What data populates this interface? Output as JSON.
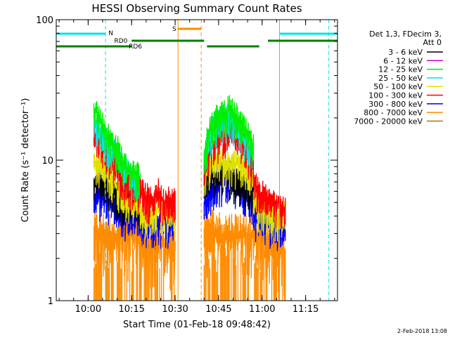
{
  "chart_data": {
    "type": "line",
    "title": "HESSI Observing Summary Count Rates",
    "xlabel": "Start Time (01-Feb-18 09:48:42)",
    "ylabel": "Count Rate (s⁻¹ detector⁻¹)",
    "y_scale": "log",
    "ylim": [
      1,
      100
    ],
    "x_range_minutes": [
      "09:49",
      "11:26"
    ],
    "x_ticks": [
      "10:00",
      "10:15",
      "10:30",
      "10:45",
      "11:00",
      "11:15"
    ],
    "y_ticks": [
      "1",
      "10",
      "100"
    ],
    "legend_position": "right",
    "legend_header": [
      "Det 1,3, FDecim 3,",
      "Att 0"
    ],
    "grid": false,
    "series": [
      {
        "name": "3 - 6 keV",
        "color": "#000000"
      },
      {
        "name": "6 - 12 keV",
        "color": "#cc00cc"
      },
      {
        "name": "12 - 25 keV",
        "color": "#00ee00"
      },
      {
        "name": "25 - 50 keV",
        "color": "#00e5e5"
      },
      {
        "name": "50 - 100 keV",
        "color": "#e0e000"
      },
      {
        "name": "100 - 300 keV",
        "color": "#ff0000"
      },
      {
        "name": "300 - 800 keV",
        "color": "#0000ff"
      },
      {
        "name": "800 - 7000 keV",
        "color": "#ff8c00"
      },
      {
        "name": "7000 - 20000 keV",
        "color": "#b07818"
      }
    ],
    "flare_segments": [
      {
        "start": "10:02",
        "end": "10:18",
        "levels": {
          "12 - 25 keV": [
            24,
            18,
            14,
            12,
            9,
            8,
            7.5
          ],
          "25 - 50 keV": [
            20,
            16,
            12.5,
            11,
            8.5,
            7.5,
            7
          ],
          "100 - 300 keV": [
            16,
            13,
            10.5,
            9,
            7,
            6.5,
            6
          ],
          "50 - 100 keV": [
            10,
            9,
            8,
            6.5,
            5.5,
            5,
            4.8
          ],
          "3 - 6 keV": [
            7,
            7,
            6.5,
            5.5,
            5,
            4.8,
            4.8
          ],
          "300 - 800 keV": [
            5.5,
            5.5,
            5,
            4.5,
            4,
            4,
            4
          ],
          "800 - 7000 keV": [
            3,
            3,
            3,
            3,
            3,
            3,
            3
          ]
        }
      },
      {
        "start": "10:18",
        "end": "10:30",
        "levels": {
          "100 - 300 keV": [
            6,
            5.5,
            5,
            6,
            5,
            5.5,
            5
          ],
          "50 - 100 keV": [
            4.5,
            4,
            4.2,
            4.5,
            4,
            4,
            4
          ],
          "300 - 800 keV": [
            3.5,
            3.5,
            3.5,
            3.5,
            3.5,
            3.5,
            3.5
          ],
          "800 - 7000 keV": [
            2.5,
            2.5,
            2.5,
            2.5,
            2.5,
            2.5,
            2.5
          ]
        }
      },
      {
        "start": "10:40",
        "end": "10:57",
        "levels": {
          "12 - 25 keV": [
            11,
            18,
            21,
            23,
            20,
            16,
            12
          ],
          "25 - 50 keV": [
            10,
            16,
            19,
            20,
            18,
            14,
            11
          ],
          "100 - 300 keV": [
            9,
            13,
            15,
            16,
            14,
            12,
            9
          ],
          "50 - 100 keV": [
            8,
            10,
            10,
            9,
            9.5,
            9,
            7
          ],
          "3 - 6 keV": [
            7,
            8,
            8,
            8,
            7,
            6.5,
            6
          ],
          "300 - 800 keV": [
            5,
            6,
            7,
            7,
            6.5,
            6,
            5
          ],
          "800 - 7000 keV": [
            3.2,
            3.2,
            3,
            3,
            3,
            3,
            3
          ]
        }
      },
      {
        "start": "10:57",
        "end": "11:08",
        "levels": {
          "100 - 300 keV": [
            7,
            6,
            5.5,
            5,
            5,
            5,
            4.5
          ],
          "50 - 100 keV": [
            5,
            4.5,
            4.5,
            4.2,
            4,
            4,
            4
          ],
          "300 - 800 keV": [
            4,
            3.8,
            3.8,
            3.5,
            3.5,
            3.2,
            3
          ],
          "800 - 7000 keV": [
            3,
            3,
            2.8,
            2.6,
            2.5,
            2.5,
            2.2
          ]
        }
      }
    ],
    "flag_labels": [
      {
        "text": "N",
        "color": "#00e5e5"
      },
      {
        "text": "RD0",
        "color": "#008000"
      },
      {
        "text": "RD6",
        "color": "#008000"
      },
      {
        "text": "S",
        "color": "#ff8c00"
      }
    ],
    "night_bars": [
      {
        "start": "09:49",
        "end": "10:06"
      },
      {
        "start": "11:06",
        "end": "11:26"
      }
    ],
    "saa_bar": {
      "start": "10:31",
      "end": "10:39"
    },
    "decimation_bars": [
      {
        "level": "upper",
        "start": "10:15",
        "end": "10:40"
      },
      {
        "level": "lower",
        "start": "09:49",
        "end": "10:15"
      },
      {
        "level": "lower",
        "start": "10:41",
        "end": "10:59"
      },
      {
        "level": "upper",
        "start": "11:02",
        "end": "11:26"
      }
    ],
    "vertical_lines": [
      {
        "time": "09:49",
        "color": "#00e5e5",
        "style": "solid"
      },
      {
        "time": "10:06",
        "color": "#00e5e5",
        "style": "dashed"
      },
      {
        "time": "10:31",
        "color": "#ff8c00",
        "style": "solid"
      },
      {
        "time": "10:39",
        "color": "#ff8c00",
        "style": "dashed"
      },
      {
        "time": "11:06",
        "color": "#00e5e5",
        "style": "solid"
      },
      {
        "time": "11:23",
        "color": "#00e5e5",
        "style": "dashed"
      }
    ]
  },
  "footer_timestamp": "2-Feb-2018 13:08"
}
